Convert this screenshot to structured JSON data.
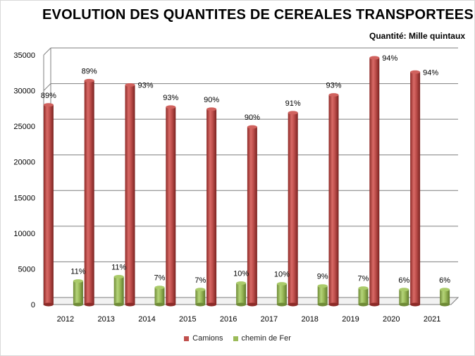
{
  "chart_data": {
    "type": "bar",
    "title": "EVOLUTION DES QUANTITES DE CEREALES TRANSPORTEES",
    "subtitle": "Quantité: Mille quintaux",
    "categories": [
      "2012",
      "2013",
      "2014",
      "2015",
      "2016",
      "2017",
      "2018",
      "2019",
      "2020",
      "2021"
    ],
    "ylim": [
      0,
      35000
    ],
    "yticks": [
      0,
      5000,
      10000,
      15000,
      20000,
      25000,
      30000,
      35000
    ],
    "grid": true,
    "legend_position": "bottom",
    "series": [
      {
        "name": "Camions",
        "color": "#c0504d",
        "values": [
          28000,
          31400,
          30800,
          27700,
          27400,
          24900,
          26900,
          29400,
          34600,
          32600
        ],
        "labels": [
          "89%",
          "89%",
          "93%",
          "93%",
          "90%",
          "90%",
          "91%",
          "93%",
          "94%",
          "94%"
        ]
      },
      {
        "name": "chemin de Fer",
        "color": "#9bbb59",
        "values": [
          3300,
          3900,
          2400,
          2100,
          3000,
          2900,
          2600,
          2300,
          2100,
          2100
        ],
        "labels": [
          "11%",
          "11%",
          "7%",
          "7%",
          "10%",
          "10%",
          "9%",
          "7%",
          "6%",
          "6%"
        ]
      }
    ]
  }
}
